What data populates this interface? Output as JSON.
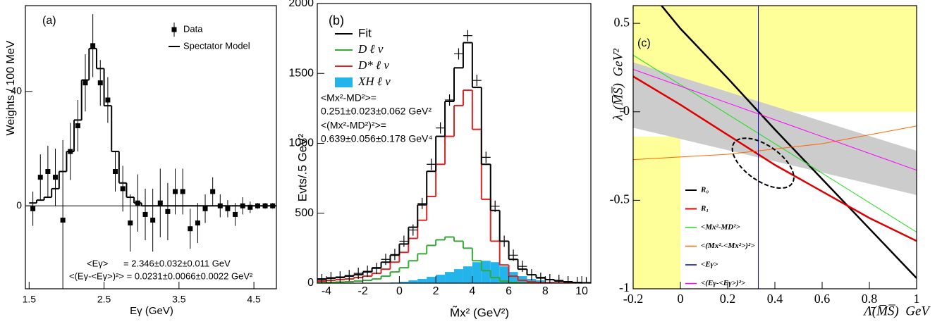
{
  "chart_data": [
    {
      "type": "histogram",
      "label": "(a)",
      "xlabel": "Eγ (GeV)",
      "ylabel": "Weights / 100 MeV",
      "xlim": [
        1.45,
        4.8
      ],
      "ylim": [
        -29,
        70
      ],
      "xticks": [
        1.5,
        2.5,
        3.5,
        4.5
      ],
      "yticks": [
        0,
        40
      ],
      "zero_line": true,
      "bins": [
        1.5,
        1.6,
        1.7,
        1.8,
        1.9,
        2.0,
        2.1,
        2.2,
        2.3,
        2.4,
        2.5,
        2.6,
        2.7,
        2.8,
        2.9,
        3.0,
        3.1,
        3.2,
        3.3,
        3.4,
        3.5,
        3.6,
        3.7,
        3.8,
        3.9,
        4.0,
        4.1,
        4.2,
        4.3,
        4.4,
        4.5,
        4.6,
        4.7,
        4.8
      ],
      "series": [
        {
          "name": "Data",
          "style": "points",
          "color": "#000000",
          "values": [
            -1,
            10,
            12,
            10,
            -5,
            19,
            28,
            43,
            56,
            43,
            37,
            12,
            6,
            -6,
            1,
            -3,
            -5,
            1,
            -2,
            5,
            5,
            -8,
            -6,
            -1,
            5,
            0,
            -1,
            -3,
            0,
            -0.5,
            0,
            0,
            0
          ],
          "errors": [
            6,
            8,
            9,
            10,
            28,
            10,
            9,
            10,
            11,
            8,
            8,
            7,
            8,
            10,
            10,
            9,
            11,
            12,
            10,
            8,
            8,
            7,
            7,
            5,
            5,
            4,
            3,
            4,
            3,
            2,
            1,
            1,
            1
          ]
        },
        {
          "name": "Spectator Model",
          "style": "step",
          "color": "#000000",
          "values": [
            1,
            2,
            3,
            6,
            12,
            19,
            30,
            44,
            55,
            48,
            35,
            19,
            8,
            3,
            1,
            0,
            0,
            0,
            0,
            0,
            0,
            0,
            0,
            0,
            0,
            0,
            0,
            0,
            0,
            0,
            0,
            0,
            0
          ]
        }
      ],
      "annotations": [
        "<Eγ>      = 2.346±0.032±0.011 GeV",
        "<(Eγ-<Eγ>)²> = 0.0231±0.0066±0.0022 GeV²"
      ]
    },
    {
      "type": "histogram",
      "label": "(b)",
      "xlabel": "M̃x² (GeV²)",
      "ylabel": "Evts/.5 GeV²",
      "xlim": [
        -4.5,
        10.5
      ],
      "ylim": [
        0,
        2000
      ],
      "xticks": [
        -4,
        -2,
        0,
        2,
        4,
        6,
        8,
        10
      ],
      "yticks": [
        0,
        500,
        1000,
        1500,
        2000
      ],
      "bins": [
        -4.5,
        -4,
        -3.5,
        -3,
        -2.5,
        -2,
        -1.5,
        -1,
        -0.5,
        0,
        0.5,
        1,
        1.5,
        2,
        2.5,
        3,
        3.5,
        4,
        4.5,
        5,
        5.5,
        6,
        6.5,
        7,
        7.5,
        8,
        8.5,
        9,
        9.5,
        10,
        10.5
      ],
      "series": [
        {
          "name": "XH ℓ ν",
          "style": "filled",
          "color": "#22b4ea",
          "values": [
            0,
            0,
            0,
            0,
            0,
            0,
            0,
            2,
            5,
            10,
            20,
            30,
            45,
            60,
            80,
            100,
            120,
            150,
            160,
            150,
            120,
            80,
            50,
            30,
            20,
            10,
            5,
            3,
            2,
            1
          ]
        },
        {
          "name": "D ℓ ν",
          "style": "step",
          "color": "#33aa33",
          "values": [
            5,
            6,
            8,
            10,
            15,
            20,
            30,
            50,
            80,
            110,
            160,
            210,
            270,
            310,
            330,
            300,
            250,
            160,
            90,
            40,
            15,
            5,
            2,
            1,
            0,
            0,
            0,
            0,
            0,
            0
          ]
        },
        {
          "name": "D* ℓ ν",
          "style": "step",
          "color": "#dd2222",
          "values": [
            15,
            20,
            25,
            30,
            40,
            50,
            70,
            100,
            150,
            220,
            320,
            450,
            620,
            850,
            1050,
            1270,
            1380,
            1100,
            600,
            300,
            130,
            50,
            20,
            10,
            5,
            3,
            2,
            1,
            0,
            0
          ]
        },
        {
          "name": "Fit",
          "style": "step",
          "color": "#000000",
          "values": [
            30,
            35,
            40,
            50,
            60,
            80,
            110,
            150,
            200,
            280,
            400,
            560,
            800,
            1050,
            1300,
            1540,
            1720,
            1400,
            850,
            520,
            300,
            170,
            100,
            60,
            40,
            25,
            15,
            10,
            5,
            3
          ]
        },
        {
          "style": "crosses",
          "color": "#000000",
          "values": [
            25,
            40,
            45,
            55,
            70,
            85,
            105,
            170,
            205,
            300,
            380,
            570,
            850,
            1110,
            1310,
            1640,
            1770,
            1450,
            900,
            550,
            300,
            200,
            120,
            60,
            35,
            25,
            20,
            10,
            5,
            3
          ]
        }
      ],
      "legend_order": [
        3,
        1,
        2,
        0
      ],
      "annotations": [
        "<Mx²-MD²>=",
        "0.251±0.023±0.062 GeV²",
        "<(Mx²-MD²)²>=",
        "0.639±0.056±0.178 GeV⁴"
      ]
    },
    {
      "type": "line",
      "label": "(c)",
      "xlabel": "Λ̄(M̅S̅)  GeV",
      "ylabel": "λ₁(M̅S̅)  GeV²",
      "xlim": [
        -0.2,
        1
      ],
      "ylim": [
        -1,
        0.6
      ],
      "xticks": [
        -0.2,
        0,
        0.2,
        0.4,
        0.6,
        0.8,
        1
      ],
      "yticks": [
        -1,
        -0.5,
        0,
        0.5
      ],
      "regions": {
        "color": "#ffff99",
        "areas": [
          {
            "x": [
              -0.2,
              1
            ],
            "y": [
              0,
              0.6
            ]
          },
          {
            "x": [
              -0.2,
              0
            ],
            "y": [
              -1,
              -0.14
            ]
          }
        ]
      },
      "band": {
        "color": "#cccccc",
        "x": [
          -0.2,
          1
        ],
        "upper": [
          0.28,
          -0.22
        ],
        "lower": [
          -0.09,
          -0.47
        ]
      },
      "series": [
        {
          "name": "R₀",
          "color": "#000000",
          "thick": true,
          "x": [
            -0.08,
            0,
            0.2,
            0.4,
            0.6,
            0.8,
            1
          ],
          "values": [
            0.6,
            0.47,
            0.19,
            -0.1,
            -0.38,
            -0.66,
            -0.94
          ]
        },
        {
          "name": "R₁",
          "color": "#dd0000",
          "thick": true,
          "x": [
            -0.2,
            0,
            0.2,
            0.4,
            0.6,
            0.8,
            1
          ],
          "values": [
            0.2,
            0.04,
            -0.13,
            -0.3,
            -0.45,
            -0.6,
            -0.73
          ]
        },
        {
          "name": "<Mx²-MD²>",
          "color": "#22dd22",
          "x": [
            -0.2,
            1
          ],
          "values": [
            0.32,
            -0.68
          ]
        },
        {
          "name": "<(Mx²-<Mx²>)²>",
          "color": "#ff6600",
          "x": [
            -0.2,
            0.2,
            0.6,
            1
          ],
          "values": [
            -0.27,
            -0.24,
            -0.18,
            -0.08
          ]
        },
        {
          "name": "<Eγ>",
          "color": "#0000cc",
          "x": [
            0.33,
            0.33
          ],
          "values": [
            -1,
            0.6
          ]
        },
        {
          "name": "<(Eγ-<Eγ>)²>",
          "color": "#ff00ff",
          "x": [
            -0.2,
            1
          ],
          "values": [
            0.24,
            -0.33
          ]
        }
      ],
      "ellipse": {
        "center": [
          0.35,
          -0.29
        ],
        "semi_axes": [
          0.15,
          0.1
        ],
        "angle": 35
      }
    }
  ]
}
